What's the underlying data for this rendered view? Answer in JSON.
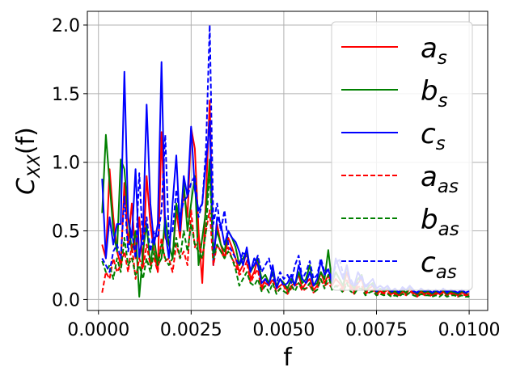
{
  "chart_data": {
    "type": "line",
    "xlabel": "f",
    "ylabel": "C_XX(f)",
    "ylabel_parts": {
      "base": "C",
      "sub": "XX",
      "rest": "(f)"
    },
    "xlim": [
      -0.0003,
      0.0105
    ],
    "ylim": [
      -0.08,
      2.1
    ],
    "x_ticks": [
      0.0,
      0.0025,
      0.005,
      0.0075,
      0.01
    ],
    "x_tick_labels": [
      "0.0000",
      "0.0025",
      "0.0050",
      "0.0075",
      "0.0100"
    ],
    "y_ticks": [
      0.0,
      0.5,
      1.0,
      1.5,
      2.0
    ],
    "y_tick_labels": [
      "0.0",
      "0.5",
      "1.0",
      "1.5",
      "2.0"
    ],
    "grid": true,
    "legend_position": "upper right",
    "x": [
      0.0001,
      0.0002,
      0.0003,
      0.0004,
      0.0005,
      0.0006,
      0.0007,
      0.0008,
      0.0009,
      0.001,
      0.0011,
      0.0012,
      0.0013,
      0.0014,
      0.0015,
      0.0016,
      0.0017,
      0.0018,
      0.0019,
      0.002,
      0.0021,
      0.0022,
      0.0023,
      0.0024,
      0.0025,
      0.0026,
      0.0027,
      0.0028,
      0.0029,
      0.003,
      0.0031,
      0.0032,
      0.0033,
      0.0034,
      0.0035,
      0.0036,
      0.0037,
      0.0038,
      0.0039,
      0.004,
      0.0041,
      0.0042,
      0.0043,
      0.0044,
      0.0045,
      0.0046,
      0.0047,
      0.0048,
      0.0049,
      0.005,
      0.0051,
      0.0052,
      0.0053,
      0.0054,
      0.0055,
      0.0056,
      0.0057,
      0.0058,
      0.0059,
      0.006,
      0.0061,
      0.0062,
      0.0063,
      0.0064,
      0.0065,
      0.0066,
      0.0067,
      0.0068,
      0.0069,
      0.007,
      0.0071,
      0.0072,
      0.0073,
      0.0074,
      0.0075,
      0.0076,
      0.0077,
      0.0078,
      0.0079,
      0.008,
      0.0081,
      0.0082,
      0.0083,
      0.0084,
      0.0085,
      0.0086,
      0.0087,
      0.0088,
      0.0089,
      0.009,
      0.0091,
      0.0092,
      0.0093,
      0.0094,
      0.0095,
      0.0096,
      0.0097,
      0.0098,
      0.0099,
      0.01
    ],
    "series": [
      {
        "name": "a_s",
        "label_base": "a",
        "label_sub": "s",
        "color": "#ff0000",
        "dash": "solid",
        "values": [
          0.4,
          0.3,
          0.95,
          0.6,
          0.35,
          0.25,
          0.85,
          0.4,
          0.7,
          0.3,
          0.6,
          0.25,
          0.9,
          0.55,
          0.35,
          0.2,
          1.22,
          0.45,
          0.4,
          0.3,
          0.65,
          0.45,
          0.8,
          0.6,
          1.25,
          1.1,
          0.5,
          0.12,
          0.75,
          1.45,
          0.3,
          0.55,
          0.4,
          0.3,
          0.45,
          0.38,
          0.3,
          0.2,
          0.25,
          0.35,
          0.15,
          0.2,
          0.3,
          0.08,
          0.15,
          0.12,
          0.2,
          0.08,
          0.1,
          0.12,
          0.06,
          0.1,
          0.12,
          0.18,
          0.08,
          0.12,
          0.15,
          0.07,
          0.1,
          0.2,
          0.12,
          0.18,
          0.1,
          0.15,
          0.12,
          0.08,
          0.2,
          0.1,
          0.06,
          0.12,
          0.15,
          0.05,
          0.08,
          0.1,
          0.04,
          0.06,
          0.05,
          0.07,
          0.04,
          0.05,
          0.03,
          0.06,
          0.04,
          0.08,
          0.05,
          0.03,
          0.06,
          0.04,
          0.05,
          0.03,
          0.05,
          0.04,
          0.06,
          0.03,
          0.05,
          0.04,
          0.03,
          0.05,
          0.04,
          0.04
        ]
      },
      {
        "name": "b_s",
        "label_base": "b",
        "label_sub": "s",
        "color": "#008000",
        "dash": "solid",
        "values": [
          0.63,
          1.2,
          0.85,
          0.5,
          0.35,
          1.02,
          0.95,
          0.6,
          0.35,
          0.5,
          0.02,
          0.35,
          0.55,
          0.25,
          0.45,
          0.25,
          0.3,
          0.6,
          0.4,
          0.3,
          0.7,
          0.55,
          0.85,
          0.5,
          0.7,
          0.9,
          0.25,
          0.45,
          0.65,
          1.02,
          0.35,
          0.5,
          0.4,
          0.35,
          0.5,
          0.45,
          0.38,
          0.25,
          0.3,
          0.35,
          0.2,
          0.25,
          0.3,
          0.15,
          0.18,
          0.12,
          0.2,
          0.1,
          0.15,
          0.12,
          0.08,
          0.15,
          0.1,
          0.2,
          0.12,
          0.15,
          0.25,
          0.1,
          0.12,
          0.2,
          0.15,
          0.36,
          0.12,
          0.2,
          0.15,
          0.1,
          0.25,
          0.12,
          0.08,
          0.15,
          0.18,
          0.06,
          0.1,
          0.12,
          0.05,
          0.08,
          0.06,
          0.08,
          0.05,
          0.06,
          0.04,
          0.07,
          0.05,
          0.09,
          0.06,
          0.04,
          0.07,
          0.05,
          0.06,
          0.04,
          0.06,
          0.05,
          0.07,
          0.04,
          0.06,
          0.05,
          0.04,
          0.06,
          0.05,
          0.02
        ]
      },
      {
        "name": "c_s",
        "label_base": "c",
        "label_sub": "s",
        "color": "#0000ff",
        "dash": "solid",
        "values": [
          0.88,
          0.3,
          0.6,
          0.4,
          0.55,
          0.55,
          1.66,
          0.6,
          0.45,
          0.95,
          0.3,
          0.5,
          1.42,
          0.7,
          0.4,
          0.55,
          1.73,
          0.5,
          0.3,
          0.7,
          1.05,
          0.5,
          0.9,
          0.75,
          1.26,
          0.8,
          0.65,
          0.7,
          1.0,
          1.3,
          0.25,
          0.6,
          0.55,
          0.4,
          0.5,
          0.45,
          0.42,
          0.35,
          0.25,
          0.38,
          0.2,
          0.3,
          0.25,
          0.12,
          0.15,
          0.1,
          0.25,
          0.08,
          0.15,
          0.1,
          0.12,
          0.18,
          0.1,
          0.25,
          0.15,
          0.12,
          0.2,
          0.1,
          0.15,
          0.28,
          0.18,
          0.22,
          0.12,
          0.3,
          0.22,
          0.15,
          0.25,
          0.12,
          0.1,
          0.2,
          0.15,
          0.1,
          0.12,
          0.15,
          0.08,
          0.1,
          0.08,
          0.1,
          0.06,
          0.08,
          0.05,
          0.09,
          0.07,
          0.1,
          0.06,
          0.05,
          0.08,
          0.06,
          0.07,
          0.05,
          0.07,
          0.05,
          0.08,
          0.05,
          0.07,
          0.06,
          0.05,
          0.07,
          0.05,
          0.06
        ]
      },
      {
        "name": "a_as",
        "label_base": "a",
        "label_sub": "as",
        "color": "#ff0000",
        "dash": "dashed",
        "values": [
          0.05,
          0.2,
          0.15,
          0.3,
          0.2,
          0.25,
          0.35,
          0.2,
          0.4,
          0.15,
          0.3,
          0.22,
          0.4,
          0.25,
          0.3,
          0.2,
          0.45,
          0.28,
          0.3,
          0.2,
          0.4,
          0.3,
          0.35,
          0.25,
          0.65,
          0.38,
          0.45,
          0.3,
          0.5,
          0.65,
          0.25,
          0.4,
          0.35,
          0.3,
          0.38,
          0.3,
          0.25,
          0.18,
          0.2,
          0.28,
          0.12,
          0.18,
          0.22,
          0.06,
          0.12,
          0.1,
          0.15,
          0.05,
          0.08,
          0.1,
          0.04,
          0.08,
          0.1,
          0.12,
          0.06,
          0.08,
          0.1,
          0.05,
          0.08,
          0.14,
          0.1,
          0.12,
          0.08,
          0.1,
          0.1,
          0.06,
          0.14,
          0.08,
          0.04,
          0.09,
          0.1,
          0.04,
          0.06,
          0.07,
          0.03,
          0.05,
          0.04,
          0.05,
          0.03,
          0.04,
          0.02,
          0.05,
          0.03,
          0.06,
          0.04,
          0.02,
          0.05,
          0.03,
          0.04,
          0.02,
          0.04,
          0.03,
          0.05,
          0.02,
          0.04,
          0.03,
          0.02,
          0.04,
          0.03,
          0.03
        ]
      },
      {
        "name": "b_as",
        "label_base": "b",
        "label_sub": "as",
        "color": "#008000",
        "dash": "dashed",
        "values": [
          0.28,
          0.2,
          0.25,
          0.15,
          0.3,
          0.2,
          0.45,
          0.25,
          0.3,
          0.18,
          0.25,
          0.15,
          0.3,
          0.2,
          0.35,
          0.25,
          0.4,
          0.3,
          0.25,
          0.3,
          0.45,
          0.3,
          0.5,
          0.35,
          0.55,
          0.4,
          0.35,
          0.3,
          0.5,
          0.95,
          0.3,
          0.4,
          0.35,
          0.3,
          0.35,
          0.3,
          0.22,
          0.1,
          0.15,
          0.2,
          0.12,
          0.1,
          0.15,
          0.06,
          0.1,
          0.05,
          0.12,
          0.04,
          0.08,
          0.06,
          0.04,
          0.1,
          0.06,
          0.12,
          0.08,
          0.08,
          0.12,
          0.05,
          0.07,
          0.15,
          0.08,
          0.18,
          0.07,
          0.1,
          0.08,
          0.05,
          0.12,
          0.06,
          0.04,
          0.08,
          0.08,
          0.03,
          0.05,
          0.06,
          0.03,
          0.04,
          0.03,
          0.04,
          0.02,
          0.03,
          0.02,
          0.04,
          0.03,
          0.05,
          0.03,
          0.02,
          0.04,
          0.03,
          0.03,
          0.02,
          0.03,
          0.02,
          0.04,
          0.02,
          0.03,
          0.03,
          0.02,
          0.03,
          0.02,
          0.02
        ]
      },
      {
        "name": "c_as",
        "label_base": "c",
        "label_sub": "as",
        "color": "#0000ff",
        "dash": "dashed",
        "values": [
          0.3,
          0.25,
          0.2,
          0.35,
          0.4,
          0.3,
          0.75,
          0.35,
          0.5,
          0.3,
          0.92,
          0.4,
          0.6,
          0.35,
          0.5,
          0.45,
          0.65,
          1.2,
          0.45,
          0.5,
          0.8,
          0.6,
          0.72,
          0.75,
          0.85,
          0.9,
          0.6,
          0.7,
          1.1,
          2.0,
          0.55,
          0.7,
          0.5,
          0.65,
          0.4,
          0.35,
          0.3,
          0.25,
          0.35,
          0.3,
          0.22,
          0.25,
          0.32,
          0.2,
          0.25,
          0.3,
          0.15,
          0.12,
          0.2,
          0.15,
          0.18,
          0.12,
          0.25,
          0.32,
          0.15,
          0.2,
          0.28,
          0.15,
          0.18,
          0.3,
          0.2,
          0.22,
          0.15,
          0.25,
          0.3,
          0.18,
          0.2,
          0.15,
          0.1,
          0.12,
          0.18,
          0.08,
          0.12,
          0.1,
          0.06,
          0.08,
          0.07,
          0.09,
          0.05,
          0.08,
          0.05,
          0.08,
          0.06,
          0.1,
          0.07,
          0.05,
          0.08,
          0.06,
          0.07,
          0.05,
          0.07,
          0.05,
          0.08,
          0.06,
          0.07,
          0.06,
          0.05,
          0.07,
          0.05,
          0.06
        ]
      }
    ]
  }
}
